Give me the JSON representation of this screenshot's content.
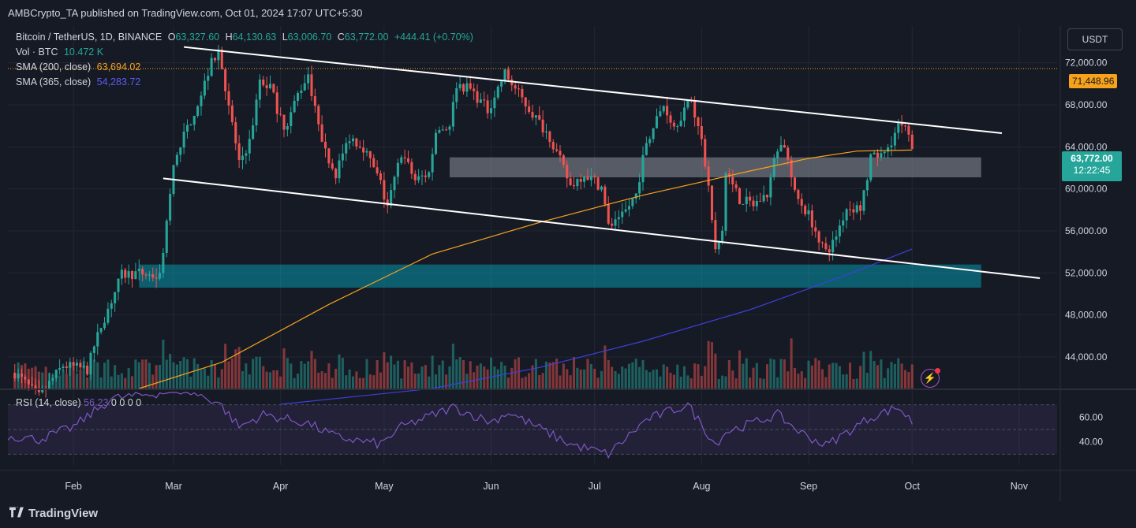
{
  "header": {
    "published": "AMBCrypto_TA published on TradingView.com, Oct 01, 2024 17:07 UTC+5:30"
  },
  "legend": {
    "symbol": "Bitcoin / TetherUS, 1D, BINANCE",
    "o_label": "O",
    "o_value": "63,327.60",
    "h_label": "H",
    "h_value": "64,130.63",
    "l_label": "L",
    "l_value": "63,006.70",
    "c_label": "C",
    "c_value": "63,772.00",
    "change": "+444.41 (+0.70%)",
    "vol_label": "Vol · BTC",
    "vol_value": "10.472 K",
    "sma200_label": "SMA (200, close)",
    "sma200_value": "63,694.02",
    "sma365_label": "SMA (365, close)",
    "sma365_value": "54,283.72",
    "rsi_label": "RSI (14, close)",
    "rsi_value": "56.23",
    "rsi_extra": "0 0 0 0"
  },
  "scale": {
    "currency": "USDT"
  },
  "price_tags": {
    "high": "71,448.96",
    "last": "63,772.00",
    "countdown": "12:22:45"
  },
  "footer": {
    "brand": "TradingView"
  },
  "colors": {
    "up": "#26a69a",
    "down": "#ef5350",
    "sma200": "#f7a21b",
    "sma365": "#3f3fd9",
    "rsi": "#7e57c2",
    "background": "#161a25"
  },
  "icons": [
    "tradingview-logo-icon",
    "lightning-icon"
  ],
  "chart_data": {
    "type": "candlestick",
    "title": "Bitcoin / TetherUS, 1D, BINANCE",
    "y_ticks": [
      44000,
      48000,
      52000,
      56000,
      60000,
      64000,
      68000,
      72000
    ],
    "y_tick_labels": [
      "44,000.00",
      "48,000.00",
      "52,000.00",
      "56,000.00",
      "60,000.00",
      "64,000.00",
      "68,000.00",
      "72,000.00"
    ],
    "ylim": [
      41000,
      75500
    ],
    "x_ticks": [
      "Feb",
      "Mar",
      "Apr",
      "May",
      "Jun",
      "Jul",
      "Aug",
      "Sep",
      "Oct",
      "Nov"
    ],
    "x_range": [
      "2024-01-13",
      "2024-11-12"
    ],
    "rsi_ticks": [
      40,
      60
    ],
    "rsi_tick_labels": [
      "40.00",
      "60.00"
    ],
    "rsi_band": [
      30,
      70
    ],
    "close_path": [
      [
        "2024-01-15",
        42500
      ],
      [
        "2024-01-22",
        40200
      ],
      [
        "2024-01-29",
        43200
      ],
      [
        "2024-02-05",
        42800
      ],
      [
        "2024-02-09",
        47000
      ],
      [
        "2024-02-15",
        51800
      ],
      [
        "2024-02-20",
        52000
      ],
      [
        "2024-02-26",
        51600
      ],
      [
        "2024-02-28",
        57000
      ],
      [
        "2024-03-01",
        62000
      ],
      [
        "2024-03-04",
        65000
      ],
      [
        "2024-03-08",
        68200
      ],
      [
        "2024-03-12",
        72000
      ],
      [
        "2024-03-14",
        73200
      ],
      [
        "2024-03-17",
        68000
      ],
      [
        "2024-03-20",
        62500
      ],
      [
        "2024-03-23",
        64500
      ],
      [
        "2024-03-26",
        70000
      ],
      [
        "2024-03-29",
        69800
      ],
      [
        "2024-04-02",
        65500
      ],
      [
        "2024-04-06",
        69000
      ],
      [
        "2024-04-09",
        71000
      ],
      [
        "2024-04-13",
        64000
      ],
      [
        "2024-04-17",
        61500
      ],
      [
        "2024-04-21",
        65000
      ],
      [
        "2024-04-25",
        64000
      ],
      [
        "2024-04-30",
        60500
      ],
      [
        "2024-05-02",
        58000
      ],
      [
        "2024-05-06",
        63500
      ],
      [
        "2024-05-10",
        60800
      ],
      [
        "2024-05-14",
        61500
      ],
      [
        "2024-05-16",
        65500
      ],
      [
        "2024-05-20",
        66000
      ],
      [
        "2024-05-22",
        70000
      ],
      [
        "2024-05-26",
        69500
      ],
      [
        "2024-05-31",
        67500
      ],
      [
        "2024-06-05",
        71000
      ],
      [
        "2024-06-08",
        69500
      ],
      [
        "2024-06-12",
        67600
      ],
      [
        "2024-06-18",
        65000
      ],
      [
        "2024-06-24",
        60300
      ],
      [
        "2024-06-28",
        61500
      ],
      [
        "2024-07-03",
        60200
      ],
      [
        "2024-07-05",
        56500
      ],
      [
        "2024-07-08",
        56800
      ],
      [
        "2024-07-13",
        59500
      ],
      [
        "2024-07-16",
        64500
      ],
      [
        "2024-07-21",
        68000
      ],
      [
        "2024-07-24",
        66000
      ],
      [
        "2024-07-29",
        68500
      ],
      [
        "2024-08-01",
        64500
      ],
      [
        "2024-08-03",
        60000
      ],
      [
        "2024-08-05",
        54000
      ],
      [
        "2024-08-07",
        56000
      ],
      [
        "2024-08-08",
        61500
      ],
      [
        "2024-08-12",
        59000
      ],
      [
        "2024-08-16",
        58500
      ],
      [
        "2024-08-20",
        59500
      ],
      [
        "2024-08-23",
        64000
      ],
      [
        "2024-08-25",
        64200
      ],
      [
        "2024-08-28",
        59500
      ],
      [
        "2024-09-01",
        57500
      ],
      [
        "2024-09-06",
        54000
      ],
      [
        "2024-09-08",
        54800
      ],
      [
        "2024-09-12",
        58200
      ],
      [
        "2024-09-16",
        58200
      ],
      [
        "2024-09-19",
        62800
      ],
      [
        "2024-09-23",
        63300
      ],
      [
        "2024-09-27",
        66000
      ],
      [
        "2024-09-29",
        65600
      ],
      [
        "2024-10-01",
        63772
      ]
    ],
    "sma200": [
      [
        "2024-02-20",
        41000
      ],
      [
        "2024-03-15",
        43500
      ],
      [
        "2024-04-15",
        49000
      ],
      [
        "2024-05-15",
        53800
      ],
      [
        "2024-06-15",
        56800
      ],
      [
        "2024-07-15",
        59400
      ],
      [
        "2024-08-15",
        61700
      ],
      [
        "2024-09-01",
        62900
      ],
      [
        "2024-09-15",
        63600
      ],
      [
        "2024-10-01",
        63694
      ]
    ],
    "sma365": [
      [
        "2024-04-01",
        39500
      ],
      [
        "2024-05-15",
        41000
      ],
      [
        "2024-06-15",
        43000
      ],
      [
        "2024-07-15",
        45500
      ],
      [
        "2024-08-15",
        48500
      ],
      [
        "2024-09-01",
        50500
      ],
      [
        "2024-09-15",
        52200
      ],
      [
        "2024-10-01",
        54284
      ]
    ],
    "trendlines": [
      {
        "name": "channel-top",
        "from": [
          "2024-03-04",
          73500
        ],
        "to": [
          "2024-10-27",
          65300
        ]
      },
      {
        "name": "channel-bottom",
        "from": [
          "2024-02-27",
          61000
        ],
        "to": [
          "2024-11-07",
          51500
        ]
      }
    ],
    "zones": [
      {
        "name": "resistance-zone",
        "from": "2024-05-20",
        "to": "2024-10-21",
        "y": [
          61100,
          63000
        ]
      },
      {
        "name": "support-zone",
        "from": "2024-02-20",
        "to": "2024-10-21",
        "y": [
          50600,
          52800
        ]
      }
    ],
    "horizontal_line": 71448.96,
    "rsi_path": [
      [
        "2024-01-13",
        45
      ],
      [
        "2024-01-22",
        42
      ],
      [
        "2024-02-01",
        52
      ],
      [
        "2024-02-12",
        75
      ],
      [
        "2024-03-04",
        82
      ],
      [
        "2024-03-14",
        72
      ],
      [
        "2024-03-20",
        52
      ],
      [
        "2024-03-27",
        62
      ],
      [
        "2024-04-09",
        55
      ],
      [
        "2024-04-17",
        44
      ],
      [
        "2024-04-30",
        38
      ],
      [
        "2024-05-06",
        52
      ],
      [
        "2024-05-21",
        68
      ],
      [
        "2024-06-01",
        56
      ],
      [
        "2024-06-06",
        64
      ],
      [
        "2024-06-24",
        38
      ],
      [
        "2024-07-05",
        30
      ],
      [
        "2024-07-16",
        58
      ],
      [
        "2024-07-28",
        70
      ],
      [
        "2024-08-05",
        38
      ],
      [
        "2024-08-08",
        48
      ],
      [
        "2024-08-23",
        62
      ],
      [
        "2024-08-30",
        47
      ],
      [
        "2024-09-06",
        37
      ],
      [
        "2024-09-19",
        60
      ],
      [
        "2024-09-27",
        68
      ],
      [
        "2024-10-01",
        56
      ]
    ]
  }
}
